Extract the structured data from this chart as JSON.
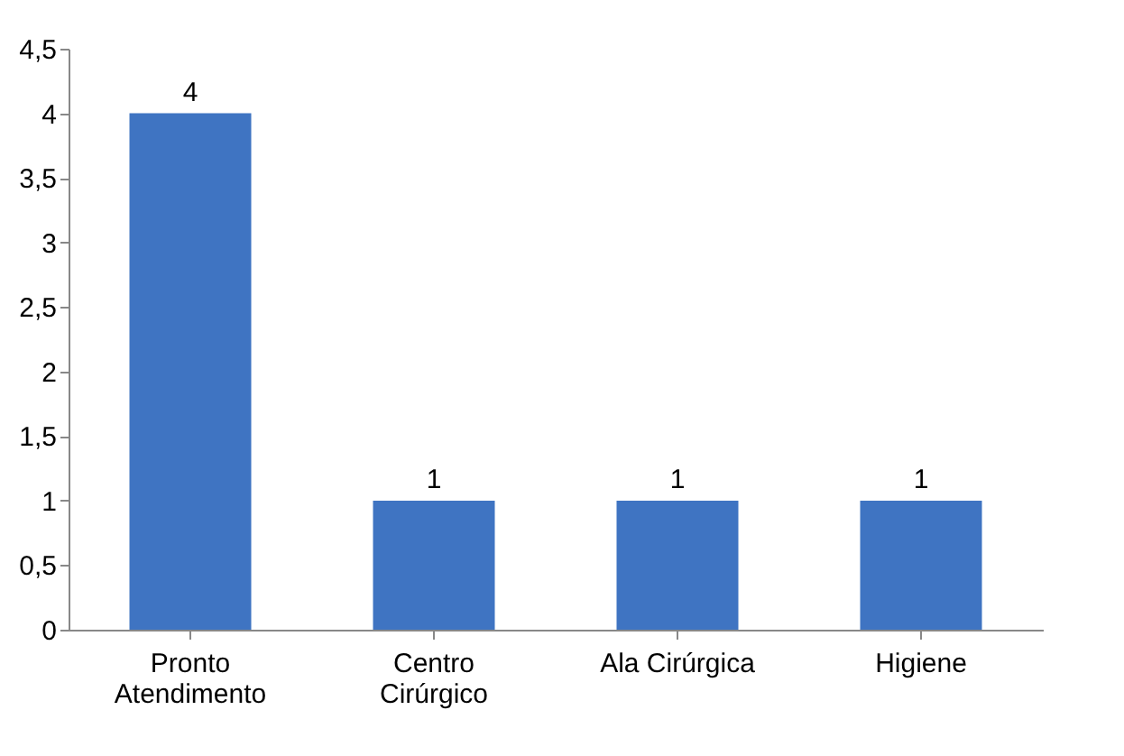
{
  "chart_data": {
    "type": "bar",
    "categories": [
      "Pronto Atendimento",
      "Centro Cirúrgico",
      "Ala Cirúrgica",
      "Higiene"
    ],
    "values": [
      4,
      1,
      1,
      1
    ],
    "color": "#3f74c2",
    "ylim": [
      0,
      4.5
    ],
    "yticks": [
      0,
      {
        "value": 0.5,
        "label": "0,5"
      },
      1,
      {
        "value": 1.5,
        "label": "1,5"
      },
      2,
      {
        "value": 2.5,
        "label": "2,5"
      },
      3,
      {
        "value": 3.5,
        "label": "3,5"
      },
      4,
      {
        "value": 4.5,
        "label": "4,5"
      }
    ],
    "data_labels": true,
    "grid": false
  }
}
